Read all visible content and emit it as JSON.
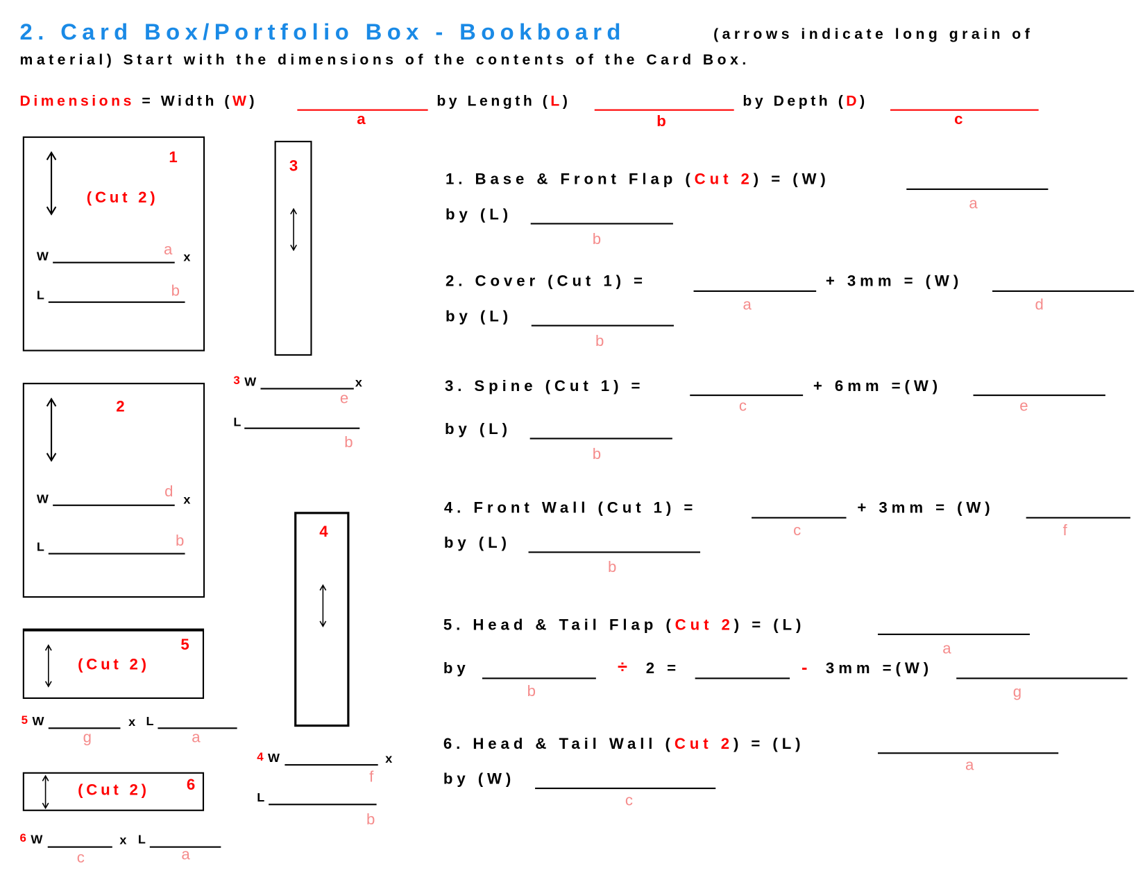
{
  "header": {
    "title": "2. Card Box/Portfolio Box - Bookboard",
    "note": "(arrows indicate long grain of",
    "intro": "material) Start with the dimensions of the contents of the Card Box."
  },
  "dimensions": {
    "label": "Dimensions",
    "eq_width": "= Width (",
    "w": "W",
    "by_length": ") by Length (",
    "l": "L",
    "by_depth": ") by Depth (",
    "d": "D",
    "close": ")",
    "a": "a",
    "b": "b",
    "c": "c"
  },
  "diagrams": {
    "piece1": {
      "number": "1",
      "cut": "(Cut 2)",
      "w": "W",
      "x": "x",
      "l": "L",
      "w_letter": "a",
      "l_letter": "b"
    },
    "piece2": {
      "number": "2",
      "w": "W",
      "x": "x",
      "l": "L",
      "w_letter": "d",
      "l_letter": "b"
    },
    "piece3": {
      "number": "3",
      "w": "W",
      "x": "x",
      "l": "L",
      "w_letter": "e",
      "l_letter": "b"
    },
    "piece4": {
      "number": "4",
      "w": "W",
      "x": "x",
      "l": "L",
      "w_letter": "f",
      "l_letter": "b"
    },
    "piece5": {
      "number": "5",
      "cut": "(Cut 2)",
      "w": "W",
      "x": "x",
      "l": "L",
      "w_letter": "g",
      "l_letter": "a"
    },
    "piece6": {
      "number": "6",
      "cut": "(Cut 2)",
      "w": "W",
      "x": "x",
      "l": "L",
      "w_letter": "c",
      "l_letter": "a"
    }
  },
  "steps": [
    {
      "pre": "1. Base & Front Flap (",
      "cut": "Cut 2",
      "post": ") = (W)",
      "letter1": "a",
      "by": "by (L)",
      "letter2": "b"
    },
    {
      "text": "2. Cover (Cut 1) =",
      "letter1": "a",
      "plus": "+ 3mm = (W)",
      "letter_res": "d",
      "by": "by (L)",
      "letter2": "b"
    },
    {
      "text": "3. Spine (Cut 1) =",
      "letter1": "c",
      "plus": "+ 6mm =(W)",
      "letter_res": "e",
      "by": "by (L)",
      "letter2": "b"
    },
    {
      "text": "4. Front Wall (Cut 1) =",
      "letter1": "c",
      "plus": "+ 3mm = (W)",
      "letter_res": "f",
      "by": "by (L)",
      "letter2": "b"
    },
    {
      "pre": "5. Head & Tail Flap (",
      "cut": "Cut 2",
      "post": ") = (L)",
      "letter1": "a",
      "by": "by",
      "letter2": "b",
      "divide": "÷",
      "two": "2 =",
      "minus": "-",
      "mm": "3mm =(W)",
      "letter_res": "g"
    },
    {
      "pre": "6. Head & Tail Wall (",
      "cut": "Cut 2",
      "post": ") = (L)",
      "letter1": "a",
      "by": "by (W)",
      "letter2": "c"
    }
  ],
  "colors": {
    "title": "#1a8ae6",
    "accent": "#ff0000",
    "letters": "#f58c8c"
  }
}
